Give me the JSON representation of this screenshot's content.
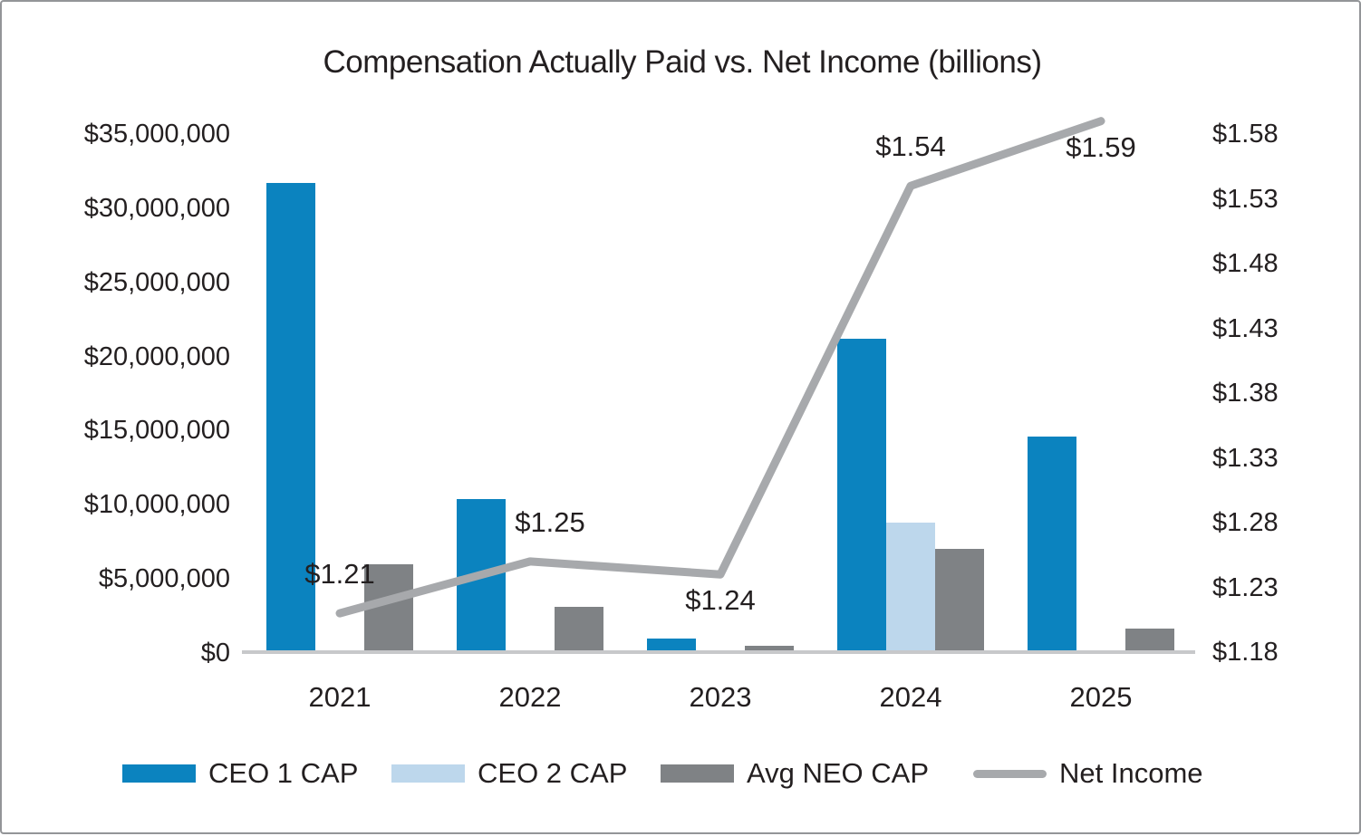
{
  "window": {
    "background": "#ffffff",
    "border_color": "#939598"
  },
  "colors": {
    "ceo1_blue": "#0b83bf",
    "ceo2_light_blue": "#bdd7ec",
    "avg_neo_gray": "#7f8285",
    "net_income_line_gray": "#a7a9ac",
    "axis_line_gray": "#c7c8ca",
    "text": "#231f20"
  },
  "chart_data": {
    "type": "combo-bar-line",
    "title": "Compensation Actually Paid vs. Net Income (billions)",
    "categories": [
      "2021",
      "2022",
      "2023",
      "2024",
      "2025"
    ],
    "bar_series": [
      {
        "name": "CEO 1 CAP",
        "color": "#0b83bf",
        "values": [
          31700000,
          10400000,
          1000000,
          21200000,
          14600000
        ]
      },
      {
        "name": "CEO 2 CAP",
        "color": "#bdd7ec",
        "values": [
          0,
          0,
          0,
          8800000,
          0
        ]
      },
      {
        "name": "Avg NEO CAP",
        "color": "#7f8285",
        "values": [
          6000000,
          3100000,
          500000,
          7000000,
          1650000
        ]
      }
    ],
    "line_series": {
      "name": "Net Income",
      "color": "#a7a9ac",
      "values": [
        1.21,
        1.25,
        1.24,
        1.54,
        1.59
      ],
      "point_labels": [
        "$1.21",
        "$1.25",
        "$1.24",
        "$1.54",
        "$1.59"
      ],
      "label_positions": [
        "above",
        "above",
        "below",
        "above",
        "below"
      ]
    },
    "left_axis": {
      "min": 0,
      "max": 35000000,
      "tick_step": 5000000,
      "tick_labels": [
        "$0",
        "$5,000,000",
        "$10,000,000",
        "$15,000,000",
        "$20,000,000",
        "$25,000,000",
        "$30,000,000",
        "$35,000,000"
      ]
    },
    "right_axis": {
      "min": 1.18,
      "max": 1.58,
      "tick_step": 0.05,
      "tick_labels": [
        "$1.18",
        "$1.23",
        "$1.28",
        "$1.33",
        "$1.38",
        "$1.43",
        "$1.48",
        "$1.53",
        "$1.58"
      ]
    },
    "grid": false,
    "legend_position": "bottom",
    "legend": [
      {
        "label": "CEO 1 CAP",
        "swatch": "rect",
        "color": "#0b83bf"
      },
      {
        "label": "CEO 2 CAP",
        "swatch": "rect",
        "color": "#bdd7ec"
      },
      {
        "label": "Avg NEO CAP",
        "swatch": "rect",
        "color": "#7f8285"
      },
      {
        "label": "Net Income",
        "swatch": "line",
        "color": "#a7a9ac"
      }
    ]
  }
}
